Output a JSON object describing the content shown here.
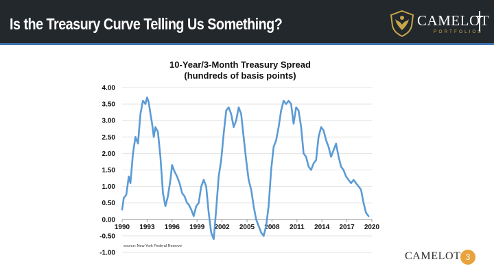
{
  "header": {
    "title": "Is the Treasury Curve Telling Us Something?",
    "logo_text": "CAMELOT",
    "logo_subtext": "PORTFOLIOS"
  },
  "footer": {
    "logo_text": "CAMELOT",
    "page_number": "3"
  },
  "colors": {
    "header_bg": "#23282c",
    "accent_blue": "#3e74ad",
    "line": "#5b9bd5",
    "gold": "#c9a54a",
    "badge": "#e8a33d"
  },
  "chart_data": {
    "type": "line",
    "title": "10-Year/3-Month Treasury Spread",
    "subtitle": "(hundreds of basis points)",
    "source": "source: New York Federal Reserve",
    "xlabel": "",
    "ylabel": "",
    "xlim": [
      1990,
      2020
    ],
    "ylim": [
      -1.0,
      4.0
    ],
    "x_ticks": [
      "1990",
      "1993",
      "1996",
      "1999",
      "2002",
      "2005",
      "2008",
      "2011",
      "2014",
      "2017",
      "2020"
    ],
    "y_ticks": [
      "4.00",
      "3.50",
      "3.00",
      "2.50",
      "2.00",
      "1.50",
      "1.00",
      "0.50",
      "0.00",
      "-0.50",
      "-1.00"
    ],
    "grid": true,
    "series": [
      {
        "x": [
          1990.0,
          1990.2,
          1990.5,
          1990.8,
          1991.0,
          1991.3,
          1991.6,
          1991.9,
          1992.2,
          1992.5,
          1992.8,
          1993.0,
          1993.2,
          1993.4,
          1993.6,
          1993.8,
          1994.0,
          1994.3,
          1994.6,
          1994.9,
          1995.2,
          1995.5,
          1995.8,
          1996.0,
          1996.3,
          1996.6,
          1996.9,
          1997.2,
          1997.5,
          1997.8,
          1998.0,
          1998.3,
          1998.6,
          1998.9,
          1999.2,
          1999.5,
          1999.8,
          2000.1,
          2000.4,
          2000.7,
          2001.0,
          2001.3,
          2001.6,
          2001.9,
          2002.2,
          2002.5,
          2002.8,
          2003.1,
          2003.4,
          2003.7,
          2004.0,
          2004.3,
          2004.6,
          2004.9,
          2005.2,
          2005.5,
          2005.8,
          2006.1,
          2006.4,
          2006.7,
          2007.0,
          2007.3,
          2007.6,
          2007.9,
          2008.2,
          2008.5,
          2008.8,
          2009.1,
          2009.4,
          2009.7,
          2010.0,
          2010.3,
          2010.6,
          2010.9,
          2011.2,
          2011.5,
          2011.8,
          2012.1,
          2012.4,
          2012.7,
          2013.0,
          2013.3,
          2013.6,
          2013.9,
          2014.2,
          2014.5,
          2014.8,
          2015.1,
          2015.4,
          2015.7,
          2016.0,
          2016.3,
          2016.6,
          2016.9,
          2017.2,
          2017.5,
          2017.8,
          2018.1,
          2018.4,
          2018.7,
          2019.0,
          2019.3,
          2019.6
        ],
        "y": [
          0.3,
          0.65,
          0.75,
          1.3,
          1.1,
          2.0,
          2.5,
          2.3,
          3.2,
          3.6,
          3.5,
          3.7,
          3.55,
          3.2,
          2.9,
          2.5,
          2.8,
          2.65,
          1.9,
          0.8,
          0.4,
          0.7,
          1.2,
          1.65,
          1.45,
          1.3,
          1.1,
          0.8,
          0.7,
          0.5,
          0.45,
          0.3,
          0.1,
          0.4,
          0.5,
          1.0,
          1.2,
          1.0,
          0.2,
          -0.4,
          -0.6,
          0.3,
          1.3,
          1.8,
          2.6,
          3.3,
          3.4,
          3.2,
          2.8,
          3.0,
          3.4,
          3.2,
          2.5,
          1.8,
          1.2,
          0.9,
          0.4,
          0.0,
          -0.2,
          -0.4,
          -0.5,
          -0.2,
          0.4,
          1.5,
          2.2,
          2.4,
          2.8,
          3.3,
          3.6,
          3.5,
          3.6,
          3.5,
          2.9,
          3.4,
          3.3,
          2.8,
          2.0,
          1.9,
          1.6,
          1.5,
          1.7,
          1.8,
          2.5,
          2.8,
          2.7,
          2.4,
          2.2,
          1.9,
          2.1,
          2.3,
          1.9,
          1.6,
          1.5,
          1.3,
          1.2,
          1.1,
          1.2,
          1.1,
          1.0,
          0.9,
          0.5,
          0.2,
          0.1
        ],
        "color": "#5b9bd5"
      }
    ]
  }
}
